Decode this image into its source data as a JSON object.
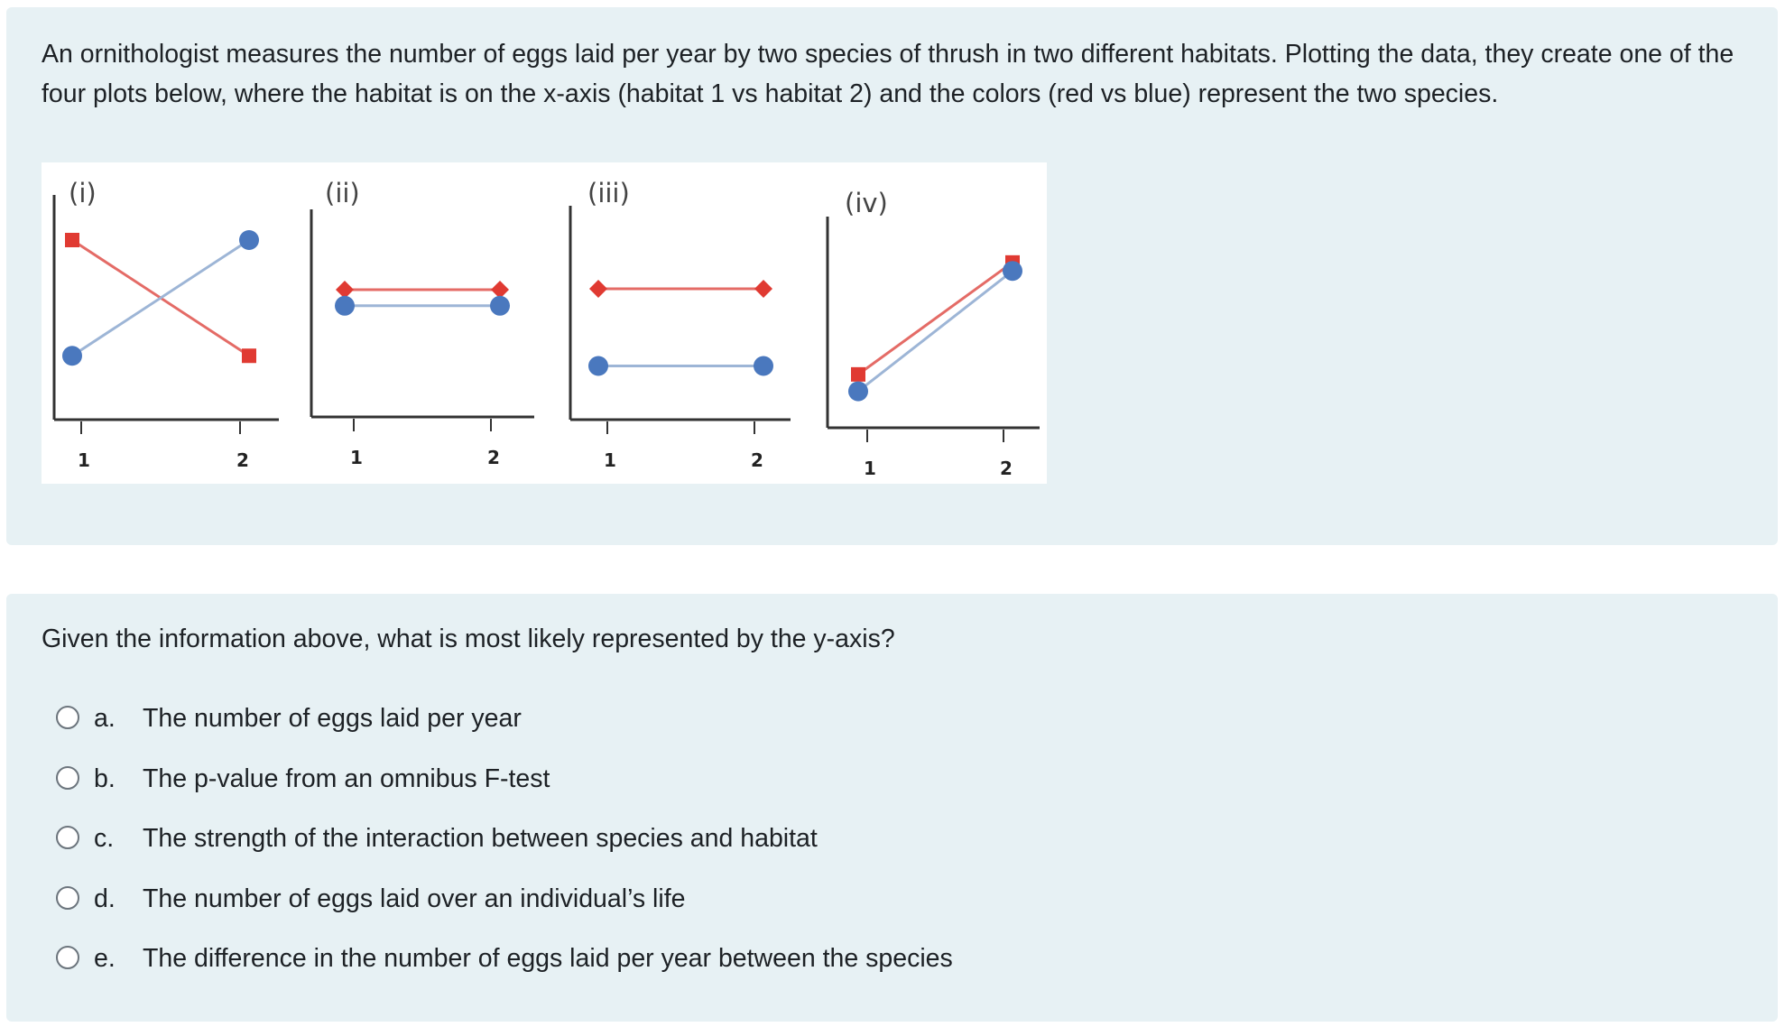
{
  "info": {
    "text": "An ornithologist measures the number of eggs laid per year by two species of thrush in two different habitats. Plotting the data, they create one of the four plots below, where the habitat is on the x-axis (habitat 1 vs habitat 2) and the colors (red vs blue) represent the two species."
  },
  "question": {
    "text": "Given the information above, what is most likely represented by the y-axis?",
    "options": [
      {
        "letter": "a.",
        "label": "The number of eggs laid per year"
      },
      {
        "letter": "b.",
        "label": "The p-value from an omnibus F-test"
      },
      {
        "letter": "c.",
        "label": "The strength of the interaction between species and habitat"
      },
      {
        "letter": "d.",
        "label": "The number of eggs laid over an individual’s life"
      },
      {
        "letter": "e.",
        "label": "The difference in the number of eggs laid per year between the species"
      }
    ]
  },
  "colors": {
    "red_series": "#e03a32",
    "blue_series": "#4a78be",
    "red_line": "#e46b66",
    "blue_line": "#9db5d6",
    "axis": "#333333"
  },
  "chart_data": [
    {
      "type": "line",
      "title": "(i)",
      "x": [
        "1",
        "2"
      ],
      "ylim": [
        0,
        10
      ],
      "series": [
        {
          "values": [
            8.4,
            2.7
          ],
          "color": "red",
          "marker": "square"
        },
        {
          "values": [
            2.7,
            8.4
          ],
          "color": "blue",
          "marker": "circle"
        }
      ]
    },
    {
      "type": "line",
      "title": "(ii)",
      "x": [
        "1",
        "2"
      ],
      "ylim": [
        0,
        10
      ],
      "series": [
        {
          "values": [
            5.9,
            5.9
          ],
          "color": "red",
          "marker": "diamond"
        },
        {
          "values": [
            5.1,
            5.1
          ],
          "color": "blue",
          "marker": "circle"
        }
      ]
    },
    {
      "type": "line",
      "title": "(iii)",
      "x": [
        "1",
        "2"
      ],
      "ylim": [
        0,
        10
      ],
      "series": [
        {
          "values": [
            6.0,
            6.0
          ],
          "color": "red",
          "marker": "diamond"
        },
        {
          "values": [
            2.2,
            2.2
          ],
          "color": "blue",
          "marker": "circle"
        }
      ]
    },
    {
      "type": "line",
      "title": "(iv)",
      "x": [
        "1",
        "2"
      ],
      "ylim": [
        0,
        10
      ],
      "series": [
        {
          "values": [
            2.1,
            7.4
          ],
          "color": "red",
          "marker": "square"
        },
        {
          "values": [
            1.3,
            7.0
          ],
          "color": "blue",
          "marker": "circle"
        }
      ]
    }
  ]
}
